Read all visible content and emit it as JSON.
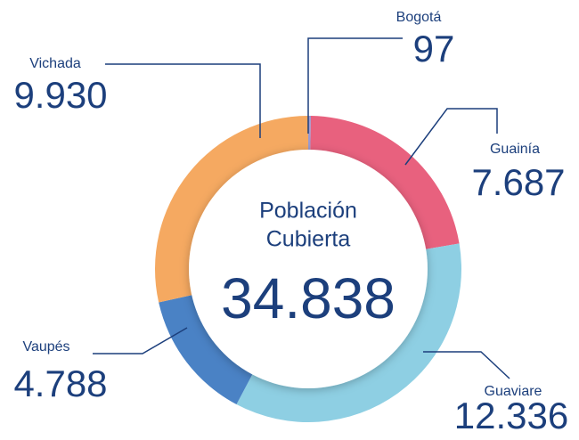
{
  "chart_data": {
    "type": "donut",
    "center_title": [
      "Población",
      "Cubierta"
    ],
    "center_text": "34.838",
    "categories": [
      "Bogotá",
      "Guainía",
      "Guaviare",
      "Vaupés",
      "Vichada"
    ],
    "values": [
      97,
      7687,
      12336,
      4788,
      9930
    ],
    "value_labels": [
      "97",
      "7.687",
      "12.336",
      "4.788",
      "9.930"
    ],
    "colors": [
      "#9b9bd3",
      "#e8617e",
      "#8ecfe3",
      "#4a82c5",
      "#f5a961"
    ]
  }
}
